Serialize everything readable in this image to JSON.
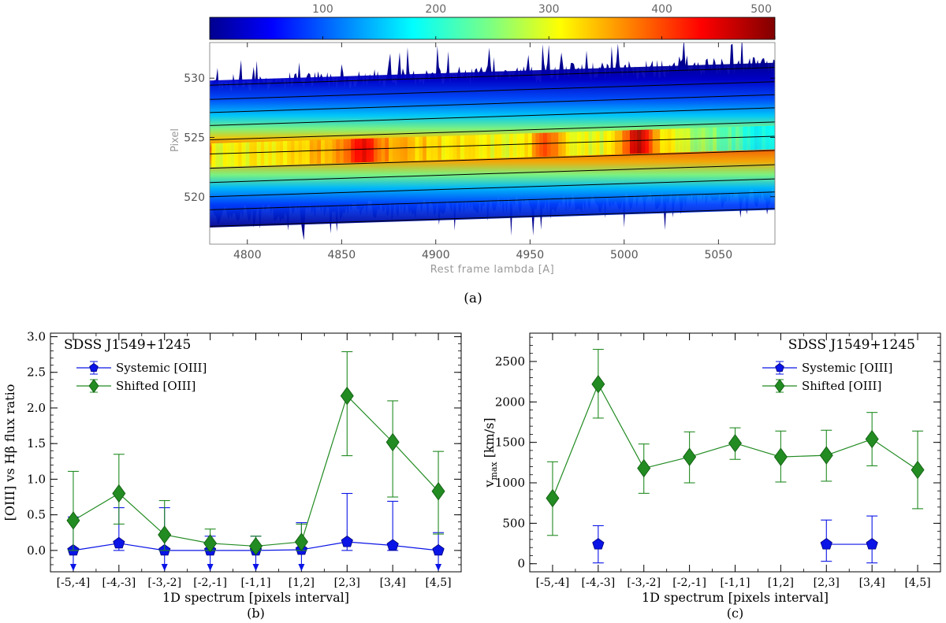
{
  "chart_data": [
    {
      "type": "heatmap",
      "panel_label": "(a)",
      "xlabel": "Rest frame lambda [A]",
      "ylabel": "Pixel",
      "xlim": [
        4780,
        5080
      ],
      "ylim": [
        516,
        533
      ],
      "x_ticks": [
        "4800",
        "4850",
        "4900",
        "4950",
        "5000",
        "5050"
      ],
      "y_ticks": [
        "520",
        "525",
        "530"
      ],
      "colorbar": {
        "range": [
          0,
          500
        ],
        "ticks": [
          "100",
          "200",
          "300",
          "400",
          "500"
        ],
        "colormap": "jet"
      },
      "trace_center": {
        "x": [
          4780,
          5080
        ],
        "y": [
          523.6,
          525.1
        ]
      },
      "trace_lines": {
        "offset_at_start": [
          517.5,
          518.9,
          520.0,
          521.2,
          522.4,
          523.6,
          524.8,
          526.0,
          527.1,
          528.2,
          529.4
        ],
        "slope_per_A": 0.005
      },
      "emission_features": [
        {
          "x": 4861,
          "name": "H-beta region",
          "peak": 380
        },
        {
          "x": 4959,
          "name": "[OIII] 4959",
          "peak": 400
        },
        {
          "x": 5007,
          "name": "[OIII] 5007",
          "peak": 470
        }
      ]
    },
    {
      "type": "line",
      "panel_label": "(b)",
      "object": "SDSS J1549+1245",
      "xlabel": "1D spectrum [pixels interval]",
      "ylabel": "[OIII] vs Hβ flux ratio",
      "categories": [
        "[-5,-4]",
        "[-4,-3]",
        "[-3,-2]",
        "[-2,-1]",
        "[-1,1]",
        "[1,2]",
        "[2,3]",
        "[3,4]",
        "[4,5]"
      ],
      "ylim": [
        -0.3,
        3.05
      ],
      "y_ticks": [
        "0.0",
        "0.5",
        "1.0",
        "1.5",
        "2.0",
        "2.5",
        "3.0"
      ],
      "series": [
        {
          "name": "Systemic [OIII]",
          "color": "#0a14e6",
          "marker": "pentagon",
          "values": [
            0.0,
            0.1,
            0.0,
            0.0,
            0.0,
            0.01,
            0.12,
            0.07,
            0.0
          ],
          "err_low": [
            0.0,
            0.1,
            0.0,
            0.0,
            0.0,
            0.01,
            0.12,
            0.07,
            0.0
          ],
          "err_high": [
            0.47,
            0.5,
            0.6,
            0.2,
            0.2,
            0.38,
            0.68,
            0.62,
            0.25
          ],
          "upper_limit": [
            true,
            false,
            true,
            true,
            true,
            true,
            false,
            false,
            true
          ]
        },
        {
          "name": "Shifted [OIII]",
          "color": "#228b22",
          "marker": "diamond",
          "values": [
            0.42,
            0.8,
            0.22,
            0.1,
            0.06,
            0.12,
            2.17,
            1.52,
            0.83
          ],
          "err_low": [
            0.42,
            0.43,
            0.22,
            0.1,
            0.06,
            0.12,
            0.84,
            0.77,
            0.6
          ],
          "err_high": [
            0.69,
            0.55,
            0.48,
            0.2,
            0.14,
            0.25,
            0.62,
            0.58,
            0.56
          ],
          "upper_limit": [
            false,
            false,
            false,
            false,
            false,
            false,
            false,
            false,
            false
          ]
        }
      ]
    },
    {
      "type": "line",
      "panel_label": "(c)",
      "object": "SDSS J1549+1245",
      "xlabel": "1D spectrum [pixels interval]",
      "ylabel": "v",
      "ylabel_sub": "max",
      "ylabel_unit": " [km/s]",
      "categories": [
        "[-5,-4]",
        "[-4,-3]",
        "[-3,-2]",
        "[-2,-1]",
        "[-1,1]",
        "[1,2]",
        "[2,3]",
        "[3,4]",
        "[4,5]"
      ],
      "ylim": [
        -100,
        2850
      ],
      "y_ticks": [
        "0",
        "500",
        "1000",
        "1500",
        "2000",
        "2500"
      ],
      "series": [
        {
          "name": "Systemic [OIII]",
          "color": "#0a14e6",
          "marker": "pentagon",
          "values": [
            null,
            240,
            null,
            null,
            null,
            null,
            240,
            240,
            null
          ],
          "err_low": [
            null,
            230,
            null,
            null,
            null,
            null,
            210,
            230,
            null
          ],
          "err_high": [
            null,
            230,
            null,
            null,
            null,
            null,
            300,
            350,
            null
          ],
          "upper_limit": [
            false,
            false,
            false,
            false,
            false,
            false,
            false,
            false,
            false
          ]
        },
        {
          "name": "Shifted [OIII]",
          "color": "#228b22",
          "marker": "diamond",
          "values": [
            810,
            2220,
            1180,
            1320,
            1490,
            1320,
            1340,
            1540,
            1160
          ],
          "err_low": [
            460,
            420,
            310,
            320,
            200,
            310,
            320,
            330,
            480
          ],
          "err_high": [
            450,
            430,
            300,
            310,
            190,
            320,
            310,
            330,
            480
          ],
          "upper_limit": [
            false,
            false,
            false,
            false,
            false,
            false,
            false,
            false,
            false
          ]
        }
      ]
    }
  ]
}
